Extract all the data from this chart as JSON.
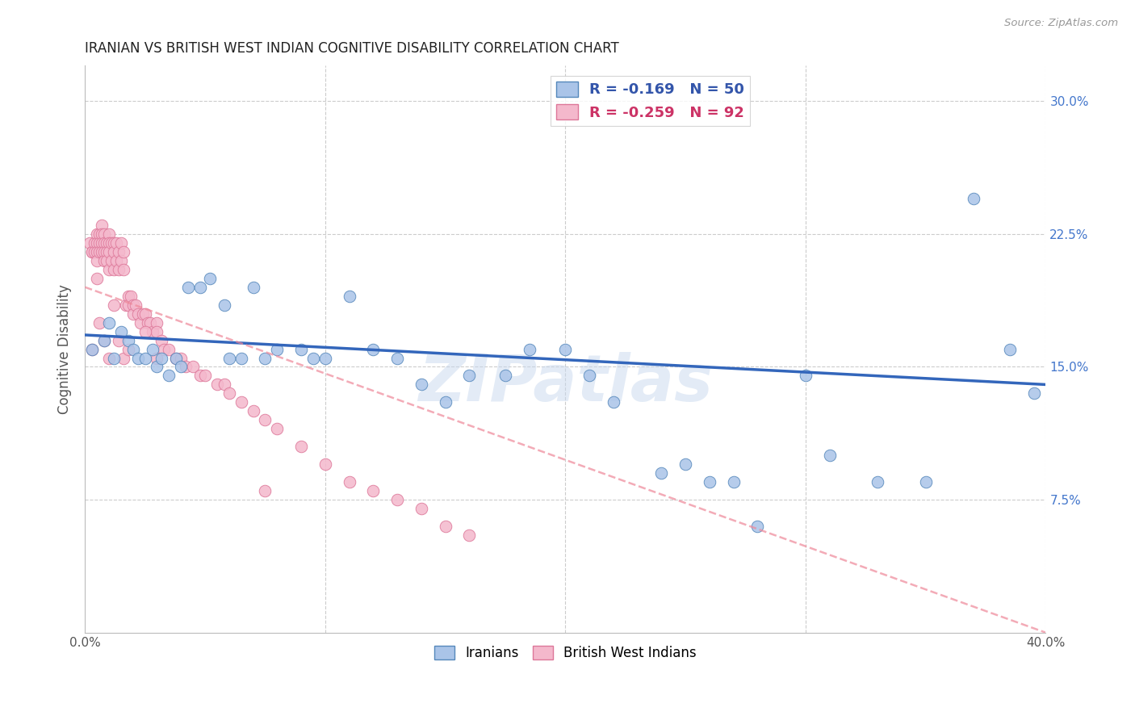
{
  "title": "IRANIAN VS BRITISH WEST INDIAN COGNITIVE DISABILITY CORRELATION CHART",
  "source": "Source: ZipAtlas.com",
  "ylabel": "Cognitive Disability",
  "xlim": [
    0.0,
    0.4
  ],
  "ylim": [
    0.0,
    0.32
  ],
  "yticks": [
    0.075,
    0.15,
    0.225,
    0.3
  ],
  "ytick_labels": [
    "7.5%",
    "15.0%",
    "22.5%",
    "30.0%"
  ],
  "bg_color": "#ffffff",
  "grid_color": "#cccccc",
  "iranians_color": "#aac4e8",
  "iranians_edge_color": "#5588bb",
  "bwi_color": "#f4b8cc",
  "bwi_edge_color": "#dd7799",
  "iranians_R": -0.169,
  "iranians_N": 50,
  "bwi_R": -0.259,
  "bwi_N": 92,
  "iranians_line_color": "#3366bb",
  "bwi_line_color": "#ee8899",
  "watermark": "ZIPatlas",
  "iranians_x": [
    0.003,
    0.008,
    0.01,
    0.012,
    0.015,
    0.018,
    0.02,
    0.022,
    0.025,
    0.028,
    0.03,
    0.032,
    0.035,
    0.038,
    0.04,
    0.043,
    0.048,
    0.052,
    0.058,
    0.06,
    0.065,
    0.07,
    0.075,
    0.08,
    0.09,
    0.095,
    0.1,
    0.11,
    0.12,
    0.13,
    0.14,
    0.15,
    0.16,
    0.175,
    0.185,
    0.2,
    0.21,
    0.22,
    0.24,
    0.25,
    0.26,
    0.27,
    0.28,
    0.3,
    0.31,
    0.33,
    0.35,
    0.37,
    0.385,
    0.395
  ],
  "iranians_y": [
    0.16,
    0.165,
    0.175,
    0.155,
    0.17,
    0.165,
    0.16,
    0.155,
    0.155,
    0.16,
    0.15,
    0.155,
    0.145,
    0.155,
    0.15,
    0.195,
    0.195,
    0.2,
    0.185,
    0.155,
    0.155,
    0.195,
    0.155,
    0.16,
    0.16,
    0.155,
    0.155,
    0.19,
    0.16,
    0.155,
    0.14,
    0.13,
    0.145,
    0.145,
    0.16,
    0.16,
    0.145,
    0.13,
    0.09,
    0.095,
    0.085,
    0.085,
    0.06,
    0.145,
    0.1,
    0.085,
    0.085,
    0.245,
    0.16,
    0.135
  ],
  "bwi_x": [
    0.002,
    0.003,
    0.003,
    0.004,
    0.004,
    0.005,
    0.005,
    0.005,
    0.005,
    0.006,
    0.006,
    0.006,
    0.007,
    0.007,
    0.007,
    0.007,
    0.008,
    0.008,
    0.008,
    0.008,
    0.009,
    0.009,
    0.009,
    0.01,
    0.01,
    0.01,
    0.01,
    0.011,
    0.011,
    0.012,
    0.012,
    0.012,
    0.013,
    0.013,
    0.014,
    0.014,
    0.015,
    0.015,
    0.016,
    0.016,
    0.017,
    0.018,
    0.018,
    0.019,
    0.02,
    0.02,
    0.021,
    0.022,
    0.023,
    0.024,
    0.025,
    0.026,
    0.027,
    0.028,
    0.03,
    0.03,
    0.032,
    0.033,
    0.035,
    0.038,
    0.04,
    0.042,
    0.045,
    0.048,
    0.05,
    0.055,
    0.058,
    0.06,
    0.065,
    0.07,
    0.075,
    0.08,
    0.09,
    0.1,
    0.11,
    0.12,
    0.13,
    0.14,
    0.15,
    0.16,
    0.003,
    0.005,
    0.006,
    0.008,
    0.01,
    0.012,
    0.014,
    0.016,
    0.018,
    0.025,
    0.03,
    0.075
  ],
  "bwi_y": [
    0.22,
    0.215,
    0.215,
    0.22,
    0.215,
    0.225,
    0.22,
    0.215,
    0.21,
    0.225,
    0.22,
    0.215,
    0.23,
    0.225,
    0.22,
    0.215,
    0.225,
    0.22,
    0.215,
    0.21,
    0.22,
    0.215,
    0.21,
    0.225,
    0.22,
    0.215,
    0.205,
    0.22,
    0.21,
    0.22,
    0.215,
    0.205,
    0.22,
    0.21,
    0.215,
    0.205,
    0.22,
    0.21,
    0.215,
    0.205,
    0.185,
    0.19,
    0.185,
    0.19,
    0.185,
    0.18,
    0.185,
    0.18,
    0.175,
    0.18,
    0.18,
    0.175,
    0.175,
    0.17,
    0.175,
    0.17,
    0.165,
    0.16,
    0.16,
    0.155,
    0.155,
    0.15,
    0.15,
    0.145,
    0.145,
    0.14,
    0.14,
    0.135,
    0.13,
    0.125,
    0.12,
    0.115,
    0.105,
    0.095,
    0.085,
    0.08,
    0.075,
    0.07,
    0.06,
    0.055,
    0.16,
    0.2,
    0.175,
    0.165,
    0.155,
    0.185,
    0.165,
    0.155,
    0.16,
    0.17,
    0.155,
    0.08
  ],
  "iran_line_x0": 0.0,
  "iran_line_x1": 0.4,
  "iran_line_y0": 0.168,
  "iran_line_y1": 0.14,
  "bwi_line_x0": 0.0,
  "bwi_line_x1": 0.4,
  "bwi_line_y0": 0.195,
  "bwi_line_y1": 0.0
}
